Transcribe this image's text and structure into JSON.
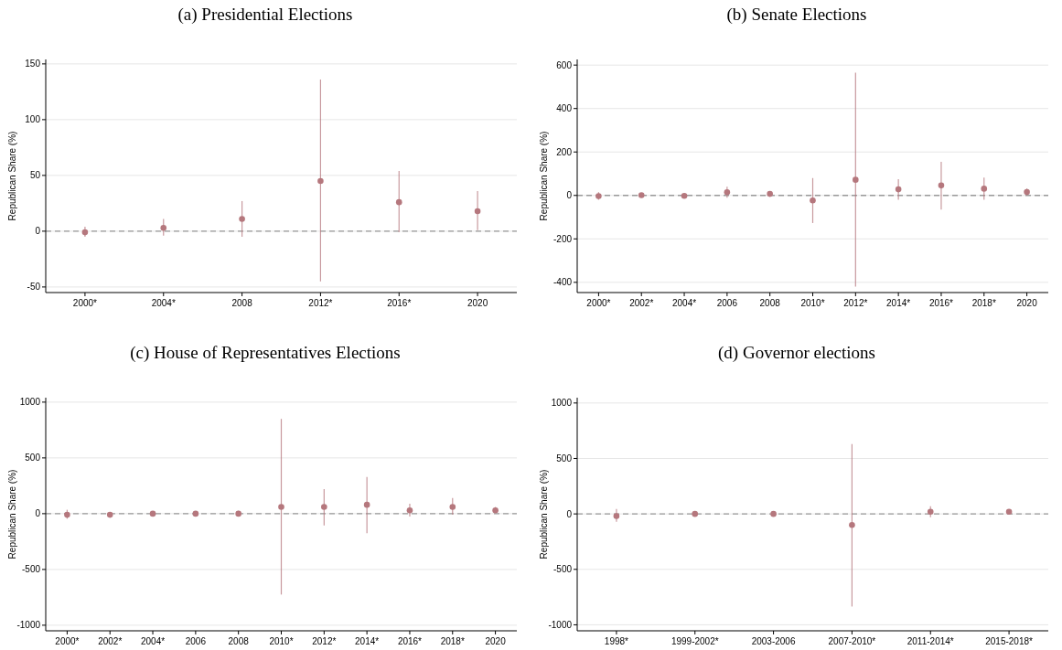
{
  "chart_data": [
    {
      "type": "scatter",
      "title": "(a) Presidential Elections",
      "ylabel": "Republican Share (%)",
      "categories": [
        "2000*",
        "2004*",
        "2008",
        "2012*",
        "2016*",
        "2020"
      ],
      "values": [
        -1,
        3,
        11,
        45,
        26,
        18
      ],
      "errors": [
        [
          -5,
          4
        ],
        [
          -4,
          11
        ],
        [
          -5,
          27
        ],
        [
          -45,
          136
        ],
        [
          -1,
          54
        ],
        [
          1,
          36
        ]
      ],
      "color": "#b5777d",
      "marker": "circle",
      "ylim": [
        -55,
        154
      ],
      "yticks": [
        -50,
        0,
        50,
        100,
        150
      ],
      "grid": "y",
      "ref_lines": [
        {
          "axis": "y",
          "value": 0,
          "color": "#999999",
          "line_style": "dashed"
        }
      ]
    },
    {
      "type": "scatter",
      "title": "(b) Senate Elections",
      "ylabel": "Republican Share (%)",
      "categories": [
        "2000*",
        "2002*",
        "2004*",
        "2006",
        "2008",
        "2010*",
        "2012*",
        "2014*",
        "2016*",
        "2018*",
        "2020"
      ],
      "values": [
        -3,
        1,
        -2,
        15,
        7,
        -23,
        72,
        28,
        46,
        31,
        16
      ],
      "errors": [
        [
          -20,
          15
        ],
        [
          -5,
          7
        ],
        [
          -6,
          2
        ],
        [
          -10,
          40
        ],
        [
          -3,
          18
        ],
        [
          -127,
          80
        ],
        [
          -420,
          565
        ],
        [
          -20,
          75
        ],
        [
          -65,
          155
        ],
        [
          -20,
          82
        ],
        [
          0,
          32
        ]
      ],
      "color": "#b5777d",
      "marker": "circle",
      "ylim": [
        -447,
        626
      ],
      "yticks": [
        -400,
        -200,
        0,
        200,
        400,
        600
      ],
      "grid": "y",
      "ref_lines": [
        {
          "axis": "y",
          "value": 0,
          "color": "#999999",
          "line_style": "dashed"
        }
      ]
    },
    {
      "type": "scatter",
      "title": "(c) House of Representatives Elections",
      "ylabel": "Republican Share (%)",
      "categories": [
        "2000*",
        "2002*",
        "2004*",
        "2006",
        "2008",
        "2010*",
        "2012*",
        "2014*",
        "2016*",
        "2018*",
        "2020"
      ],
      "values": [
        -10,
        -10,
        0,
        0,
        0,
        60,
        60,
        80,
        30,
        60,
        30
      ],
      "errors": [
        [
          -45,
          35
        ],
        [
          -25,
          5
        ],
        [
          -15,
          5
        ],
        [
          -10,
          20
        ],
        [
          -25,
          25
        ],
        [
          -725,
          850
        ],
        [
          -105,
          220
        ],
        [
          -175,
          330
        ],
        [
          -25,
          90
        ],
        [
          -10,
          140
        ],
        [
          5,
          60
        ]
      ],
      "color": "#b5777d",
      "marker": "circle",
      "ylim": [
        -1050,
        1040
      ],
      "yticks": [
        -1000,
        -500,
        0,
        500,
        1000
      ],
      "grid": "y",
      "ref_lines": [
        {
          "axis": "y",
          "value": 0,
          "color": "#999999",
          "line_style": "dashed"
        }
      ]
    },
    {
      "type": "scatter",
      "title": "(d) Governor elections",
      "ylabel": "Republican Share (%)",
      "categories": [
        "1998*",
        "1999-2002*",
        "2003-2006",
        "2007-2010*",
        "2011-2014*",
        "2015-2018*"
      ],
      "values": [
        -20,
        0,
        0,
        -100,
        20,
        20
      ],
      "errors": [
        [
          -70,
          45
        ],
        null,
        null,
        [
          -835,
          630
        ],
        [
          -30,
          70
        ],
        [
          0,
          40
        ]
      ],
      "color": "#b5777d",
      "marker": "circle",
      "ylim": [
        -1054,
        1048
      ],
      "yticks": [
        -1000,
        -500,
        0,
        500,
        1000
      ],
      "grid": "y",
      "ref_lines": [
        {
          "axis": "y",
          "value": 0,
          "color": "#999999",
          "line_style": "dashed"
        }
      ]
    }
  ]
}
